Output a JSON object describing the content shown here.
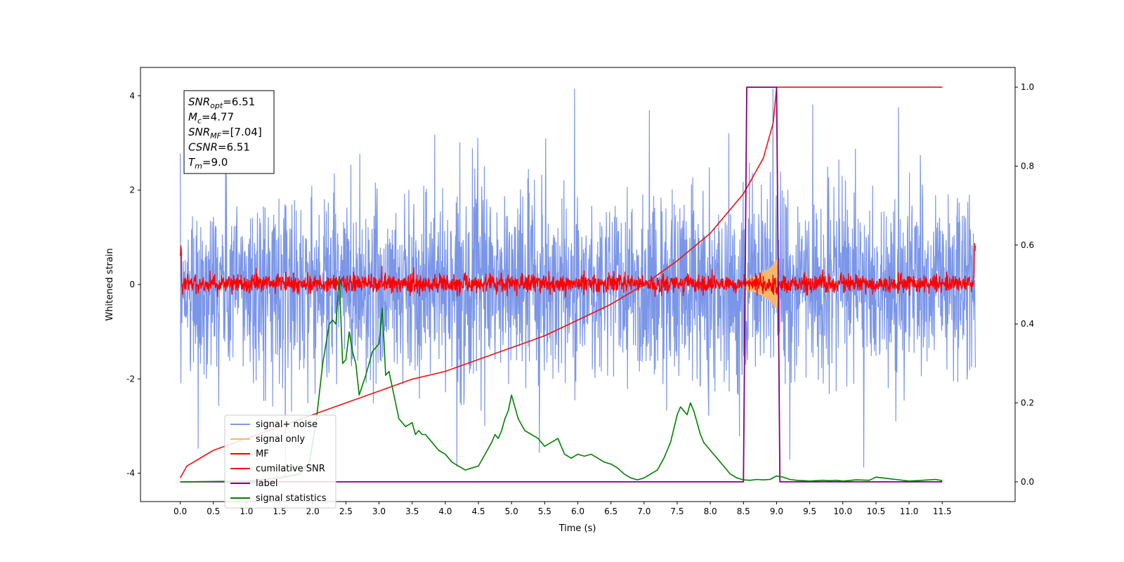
{
  "chart_data": {
    "type": "line",
    "title": "",
    "xlabel": "Time (s)",
    "ylabel": "Whitened strain",
    "y2label": "",
    "xlim": [
      -0.6,
      12.6
    ],
    "ylim": [
      -4.6,
      4.6
    ],
    "y2lim": [
      -0.05,
      1.05
    ],
    "x_ticks": [
      "0.0",
      "0.5",
      "1.0",
      "1.5",
      "2.0",
      "2.5",
      "3.0",
      "3.5",
      "4.0",
      "4.5",
      "5.0",
      "5.5",
      "6.0",
      "6.5",
      "7.0",
      "7.5",
      "8.0",
      "8.5",
      "9.0",
      "9.5",
      "10.0",
      "10.5",
      "11.0",
      "11.5"
    ],
    "y_ticks": [
      "-4",
      "-2",
      "0",
      "2",
      "4"
    ],
    "y2_ticks": [
      "0.0",
      "0.2",
      "0.4",
      "0.6",
      "0.8",
      "1.0"
    ],
    "grid": false,
    "legend_position": "lower-left",
    "colors": {
      "signal_noise": "#7b96e8",
      "signal_only": "#f5b86a",
      "mf": "#ff0000",
      "cumulative_snr": "#ee1111",
      "label": "#800080",
      "signal_statistics": "#008000"
    },
    "annotations": [
      {
        "var": "SNR",
        "sub": "opt",
        "value": "=6.51"
      },
      {
        "var": "M",
        "sub": "c",
        "value": "=4.77"
      },
      {
        "var": "SNR",
        "sub": "MF",
        "value": "=[7.04]"
      },
      {
        "var": "CSNR",
        "sub": "",
        "value": "=6.51"
      },
      {
        "var": "T",
        "sub": "m",
        "value": "=9.0"
      }
    ],
    "series": [
      {
        "name": "signal+ noise",
        "axis": "left",
        "kind": "noise",
        "amplitude_sd": 1.0,
        "mean": 0.0,
        "x_range": [
          0,
          12
        ]
      },
      {
        "name": "signal only",
        "axis": "left",
        "kind": "chirp",
        "envelope": {
          "x": [
            8.5,
            8.7,
            8.9,
            9.0,
            9.05
          ],
          "y": [
            0.1,
            0.18,
            0.35,
            0.55,
            0.0
          ]
        }
      },
      {
        "name": "MF",
        "axis": "left",
        "kind": "noise",
        "amplitude_sd": 0.1,
        "mean": 0.02,
        "x_range": [
          0,
          12
        ]
      },
      {
        "name": "cumilative SNR",
        "axis": "right",
        "x": [
          0,
          0.1,
          0.5,
          1,
          1.5,
          2,
          2.5,
          3,
          3.5,
          4,
          4.5,
          5,
          5.5,
          6,
          6.5,
          7,
          7.5,
          8,
          8.5,
          8.8,
          8.95,
          9.0,
          9.01,
          11.5
        ],
        "y": [
          0.01,
          0.04,
          0.08,
          0.11,
          0.14,
          0.17,
          0.2,
          0.23,
          0.26,
          0.28,
          0.31,
          0.34,
          0.37,
          0.41,
          0.45,
          0.5,
          0.56,
          0.63,
          0.73,
          0.82,
          0.91,
          1.0,
          1.0,
          1.0
        ]
      },
      {
        "name": "label",
        "axis": "right",
        "x": [
          0,
          8.5,
          8.55,
          9.0,
          9.05,
          11.5
        ],
        "y": [
          0,
          0,
          1,
          1,
          0,
          0
        ]
      },
      {
        "name": "signal statistics",
        "axis": "right",
        "x": [
          0,
          1.0,
          1.5,
          1.8,
          1.95,
          2.05,
          2.15,
          2.25,
          2.3,
          2.35,
          2.4,
          2.45,
          2.5,
          2.55,
          2.6,
          2.65,
          2.7,
          2.8,
          2.9,
          3.0,
          3.05,
          3.1,
          3.15,
          3.2,
          3.25,
          3.3,
          3.4,
          3.5,
          3.55,
          3.6,
          3.65,
          3.7,
          3.8,
          3.9,
          4.0,
          4.1,
          4.2,
          4.3,
          4.4,
          4.5,
          4.6,
          4.7,
          4.75,
          4.8,
          4.85,
          4.9,
          4.95,
          5.0,
          5.05,
          5.1,
          5.2,
          5.3,
          5.4,
          5.5,
          5.6,
          5.7,
          5.8,
          5.9,
          6.0,
          6.1,
          6.2,
          6.3,
          6.4,
          6.5,
          6.6,
          6.7,
          6.8,
          6.9,
          7.0,
          7.1,
          7.2,
          7.3,
          7.4,
          7.5,
          7.55,
          7.6,
          7.65,
          7.7,
          7.75,
          7.8,
          7.85,
          7.9,
          8.0,
          8.1,
          8.2,
          8.3,
          8.4,
          8.5,
          8.6,
          8.7,
          8.8,
          8.9,
          9.0,
          9.1,
          9.2,
          9.3,
          9.4,
          9.5,
          9.6,
          9.7,
          9.8,
          9.9,
          10.0,
          10.2,
          10.4,
          10.5,
          10.6,
          10.8,
          11.0,
          11.2,
          11.4,
          11.5
        ],
        "y": [
          0.0,
          0.002,
          0.01,
          0.02,
          0.05,
          0.15,
          0.3,
          0.4,
          0.41,
          0.4,
          0.52,
          0.3,
          0.31,
          0.38,
          0.33,
          0.3,
          0.22,
          0.27,
          0.33,
          0.35,
          0.44,
          0.27,
          0.28,
          0.24,
          0.2,
          0.16,
          0.14,
          0.15,
          0.12,
          0.13,
          0.12,
          0.12,
          0.1,
          0.08,
          0.07,
          0.05,
          0.04,
          0.03,
          0.035,
          0.04,
          0.07,
          0.1,
          0.12,
          0.11,
          0.13,
          0.16,
          0.18,
          0.22,
          0.19,
          0.16,
          0.13,
          0.12,
          0.11,
          0.09,
          0.1,
          0.11,
          0.07,
          0.06,
          0.07,
          0.065,
          0.07,
          0.06,
          0.05,
          0.045,
          0.035,
          0.02,
          0.01,
          0.005,
          0.01,
          0.02,
          0.03,
          0.06,
          0.1,
          0.17,
          0.19,
          0.18,
          0.17,
          0.2,
          0.18,
          0.15,
          0.12,
          0.1,
          0.08,
          0.06,
          0.04,
          0.02,
          0.01,
          0.005,
          0.004,
          0.006,
          0.005,
          0.006,
          0.015,
          0.012,
          0.006,
          0.004,
          0.003,
          0.002,
          0.003,
          0.004,
          0.003,
          0.004,
          0.002,
          0.005,
          0.004,
          0.012,
          0.01,
          0.006,
          0.002,
          0.004,
          0.006,
          0.003
        ]
      }
    ]
  }
}
